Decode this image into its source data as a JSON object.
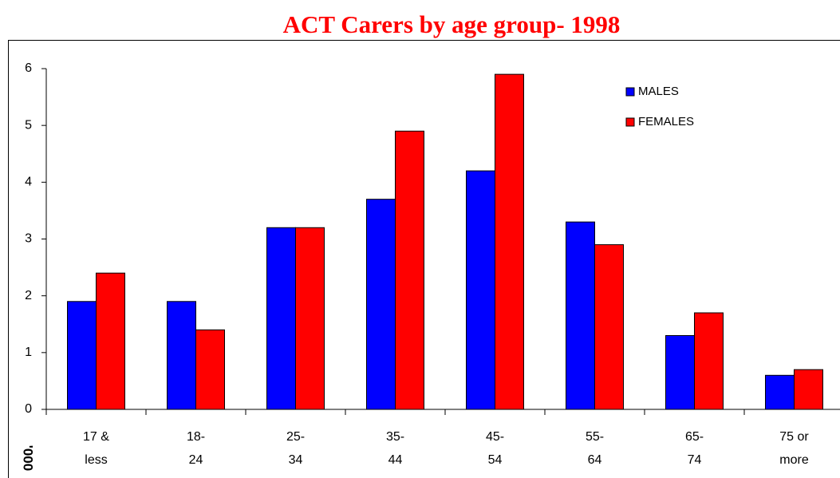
{
  "chart_data": {
    "type": "bar",
    "title": "ACT Carers by age group- 1998",
    "y_label": "'000",
    "categories": [
      [
        "17 &",
        "less"
      ],
      [
        "18-",
        "24"
      ],
      [
        "25-",
        "34"
      ],
      [
        "35-",
        "44"
      ],
      [
        "45-",
        "54"
      ],
      [
        "55-",
        "64"
      ],
      [
        "65-",
        "74"
      ],
      [
        "75 or",
        "more"
      ]
    ],
    "series": [
      {
        "name": "MALES",
        "color": "#0000ff",
        "values": [
          1.9,
          1.9,
          3.2,
          3.7,
          4.2,
          3.3,
          1.3,
          0.6
        ]
      },
      {
        "name": "FEMALES",
        "color": "#ff0000",
        "values": [
          2.4,
          1.4,
          3.2,
          4.9,
          5.9,
          2.9,
          1.7,
          0.7
        ]
      }
    ],
    "ylim": [
      0,
      6
    ],
    "yticks": [
      0,
      1,
      2,
      3,
      4,
      5,
      6
    ],
    "grid": false,
    "legend": "top-right"
  }
}
